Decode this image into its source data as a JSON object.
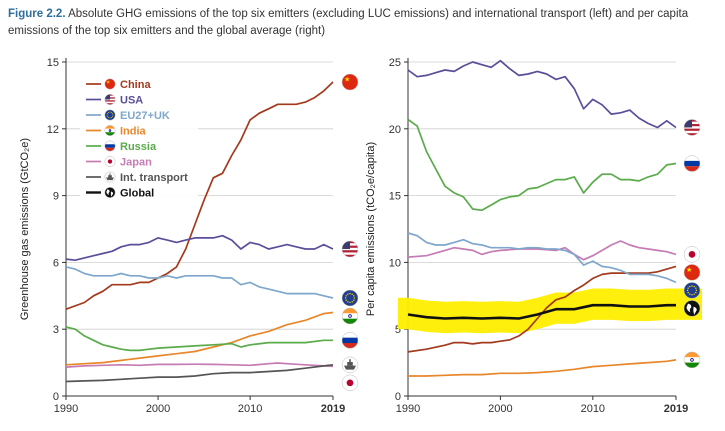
{
  "caption": {
    "figure_label": "Figure 2.2.",
    "text": "Absolute GHG emissions of the top six emitters (excluding LUC emissions) and international transport (left) and per capita emissions of the top six emitters and the global average (right)"
  },
  "colors": {
    "China": "#a33a1c",
    "USA": "#5a4e9a",
    "EU27+UK": "#7fa7cc",
    "India": "#e8872a",
    "Russia": "#5aab4a",
    "Japan": "#c67bb4",
    "Int. transport": "#555555",
    "Global": "#111111",
    "highlight": "#ffee00",
    "grid": "#cfcfcf"
  },
  "chart_data": [
    {
      "type": "line",
      "title": "",
      "xlabel": "",
      "ylabel": "Greenhouse gas emissions (GtCO₂e)",
      "xlim": [
        1990,
        2019
      ],
      "ylim": [
        0,
        15
      ],
      "xticks": [
        "1990",
        "2000",
        "2010",
        "2019"
      ],
      "yticks": [
        "0",
        "3",
        "6",
        "9",
        "12",
        "15"
      ],
      "grid": true,
      "legend": "top-left",
      "legend_entries": [
        "China",
        "USA",
        "EU27+UK",
        "India",
        "Russia",
        "Japan",
        "Int. transport",
        "Global"
      ],
      "legend_icons": [
        "china-flag-icon",
        "usa-flag-icon",
        "eu-flag-icon",
        "india-flag-icon",
        "russia-flag-icon",
        "japan-flag-icon",
        "ship-icon",
        "globe-icon"
      ],
      "end_icons": [
        "china-flag-icon",
        "usa-flag-icon",
        "eu-flag-icon",
        "india-flag-icon",
        "russia-flag-icon",
        "ship-icon",
        "japan-flag-icon"
      ],
      "series": [
        {
          "name": "China",
          "x": [
            1990,
            1992,
            1993,
            1994,
            1995,
            1996,
            1997,
            1998,
            1999,
            2000,
            2001,
            2002,
            2003,
            2004,
            2005,
            2006,
            2007,
            2008,
            2009,
            2010,
            2011,
            2012,
            2013,
            2014,
            2015,
            2016,
            2017,
            2018,
            2019
          ],
          "y": [
            3.9,
            4.2,
            4.5,
            4.7,
            5.0,
            5.0,
            5.0,
            5.1,
            5.1,
            5.3,
            5.5,
            5.8,
            6.6,
            7.7,
            8.8,
            9.8,
            10.0,
            10.8,
            11.5,
            12.4,
            12.7,
            12.9,
            13.1,
            13.1,
            13.1,
            13.2,
            13.4,
            13.7,
            14.1
          ]
        },
        {
          "name": "USA",
          "x": [
            1990,
            1991,
            1992,
            1993,
            1994,
            1995,
            1996,
            1997,
            1998,
            1999,
            2000,
            2001,
            2002,
            2003,
            2004,
            2005,
            2006,
            2007,
            2008,
            2009,
            2010,
            2011,
            2012,
            2013,
            2014,
            2015,
            2016,
            2017,
            2018,
            2019
          ],
          "y": [
            6.15,
            6.1,
            6.2,
            6.3,
            6.4,
            6.5,
            6.7,
            6.8,
            6.8,
            6.9,
            7.1,
            7.0,
            6.9,
            7.0,
            7.1,
            7.1,
            7.1,
            7.2,
            7.0,
            6.6,
            6.9,
            6.8,
            6.6,
            6.7,
            6.8,
            6.7,
            6.6,
            6.6,
            6.8,
            6.6
          ]
        },
        {
          "name": "EU27+UK",
          "x": [
            1990,
            1991,
            1992,
            1993,
            1994,
            1995,
            1996,
            1997,
            1998,
            1999,
            2000,
            2001,
            2002,
            2003,
            2004,
            2005,
            2006,
            2007,
            2008,
            2009,
            2010,
            2011,
            2012,
            2013,
            2014,
            2015,
            2016,
            2017,
            2018,
            2019
          ],
          "y": [
            5.8,
            5.7,
            5.5,
            5.4,
            5.4,
            5.4,
            5.5,
            5.4,
            5.4,
            5.3,
            5.3,
            5.4,
            5.3,
            5.4,
            5.4,
            5.4,
            5.4,
            5.3,
            5.3,
            5.0,
            5.1,
            4.9,
            4.8,
            4.7,
            4.6,
            4.6,
            4.6,
            4.6,
            4.5,
            4.4
          ]
        },
        {
          "name": "India",
          "x": [
            1990,
            1992,
            1994,
            1996,
            1998,
            2000,
            2002,
            2004,
            2006,
            2008,
            2010,
            2012,
            2014,
            2016,
            2018,
            2019
          ],
          "y": [
            1.4,
            1.45,
            1.5,
            1.6,
            1.7,
            1.8,
            1.9,
            2.0,
            2.2,
            2.4,
            2.7,
            2.9,
            3.2,
            3.4,
            3.7,
            3.75
          ]
        },
        {
          "name": "Russia",
          "x": [
            1990,
            1991,
            1992,
            1993,
            1994,
            1995,
            1996,
            1997,
            1998,
            1999,
            2000,
            2002,
            2004,
            2006,
            2008,
            2009,
            2010,
            2012,
            2014,
            2016,
            2018,
            2019
          ],
          "y": [
            3.1,
            3.0,
            2.7,
            2.5,
            2.3,
            2.2,
            2.1,
            2.05,
            2.05,
            2.1,
            2.15,
            2.2,
            2.25,
            2.3,
            2.35,
            2.2,
            2.3,
            2.4,
            2.4,
            2.4,
            2.5,
            2.5
          ]
        },
        {
          "name": "Japan",
          "x": [
            1990,
            1992,
            1994,
            1996,
            1998,
            2000,
            2002,
            2004,
            2006,
            2008,
            2010,
            2012,
            2013,
            2014,
            2016,
            2018,
            2019
          ],
          "y": [
            1.3,
            1.35,
            1.38,
            1.4,
            1.38,
            1.42,
            1.42,
            1.43,
            1.42,
            1.4,
            1.38,
            1.45,
            1.48,
            1.45,
            1.4,
            1.35,
            1.33
          ]
        },
        {
          "name": "Int. transport",
          "x": [
            1990,
            1992,
            1994,
            1996,
            1998,
            2000,
            2002,
            2004,
            2006,
            2008,
            2010,
            2012,
            2014,
            2016,
            2018,
            2019
          ],
          "y": [
            0.65,
            0.68,
            0.7,
            0.75,
            0.8,
            0.85,
            0.85,
            0.9,
            1.0,
            1.05,
            1.05,
            1.1,
            1.15,
            1.25,
            1.35,
            1.4
          ]
        }
      ]
    },
    {
      "type": "line",
      "title": "",
      "xlabel": "",
      "ylabel": "Per capita emissions (tCO₂e/capita)",
      "xlim": [
        1990,
        2019
      ],
      "ylim": [
        0,
        25
      ],
      "xticks": [
        "1990",
        "2000",
        "2010",
        "2019"
      ],
      "yticks": [
        "0",
        "5",
        "10",
        "15",
        "20",
        "25"
      ],
      "grid": true,
      "legend": "none",
      "highlight_series": "Global",
      "end_icons": [
        "usa-flag-icon",
        "russia-flag-icon",
        "japan-flag-icon",
        "china-flag-icon",
        "eu-flag-icon",
        "globe-icon",
        "india-flag-icon"
      ],
      "series": [
        {
          "name": "USA",
          "x": [
            1990,
            1991,
            1992,
            1993,
            1994,
            1995,
            1996,
            1997,
            1998,
            1999,
            2000,
            2001,
            2002,
            2003,
            2004,
            2005,
            2006,
            2007,
            2008,
            2009,
            2010,
            2011,
            2012,
            2013,
            2014,
            2015,
            2016,
            2017,
            2018,
            2019
          ],
          "y": [
            24.4,
            23.9,
            24.0,
            24.2,
            24.4,
            24.3,
            24.7,
            25.0,
            24.8,
            24.6,
            25.1,
            24.5,
            24.0,
            24.1,
            24.3,
            24.1,
            23.7,
            23.9,
            23.0,
            21.5,
            22.2,
            21.8,
            21.1,
            21.2,
            21.4,
            20.8,
            20.4,
            20.1,
            20.6,
            20.1
          ]
        },
        {
          "name": "Russia",
          "x": [
            1990,
            1991,
            1992,
            1993,
            1994,
            1995,
            1996,
            1997,
            1998,
            1999,
            2000,
            2001,
            2002,
            2003,
            2004,
            2005,
            2006,
            2007,
            2008,
            2009,
            2010,
            2011,
            2012,
            2013,
            2014,
            2015,
            2016,
            2017,
            2018,
            2019
          ],
          "y": [
            20.7,
            20.2,
            18.3,
            17.0,
            15.7,
            15.2,
            14.9,
            14.0,
            13.9,
            14.3,
            14.7,
            14.9,
            15.0,
            15.5,
            15.6,
            15.9,
            16.2,
            16.2,
            16.4,
            15.2,
            16.0,
            16.6,
            16.6,
            16.2,
            16.2,
            16.1,
            16.4,
            16.6,
            17.3,
            17.4
          ]
        },
        {
          "name": "Japan",
          "x": [
            1990,
            1992,
            1994,
            1995,
            1996,
            1997,
            1998,
            1999,
            2000,
            2002,
            2004,
            2006,
            2007,
            2008,
            2009,
            2010,
            2011,
            2012,
            2013,
            2014,
            2015,
            2016,
            2017,
            2018,
            2019
          ],
          "y": [
            10.4,
            10.5,
            10.9,
            11.1,
            11.0,
            10.9,
            10.6,
            10.8,
            10.9,
            11.0,
            11.0,
            10.9,
            11.1,
            10.6,
            10.2,
            10.5,
            10.9,
            11.3,
            11.6,
            11.3,
            11.1,
            11.0,
            10.9,
            10.8,
            10.6
          ]
        },
        {
          "name": "China",
          "x": [
            1990,
            1992,
            1994,
            1995,
            1996,
            1997,
            1998,
            1999,
            2000,
            2001,
            2002,
            2003,
            2004,
            2005,
            2006,
            2007,
            2008,
            2009,
            2010,
            2011,
            2012,
            2013,
            2014,
            2015,
            2016,
            2017,
            2018,
            2019
          ],
          "y": [
            3.3,
            3.5,
            3.8,
            4.0,
            4.0,
            3.9,
            4.0,
            4.0,
            4.1,
            4.2,
            4.5,
            5.0,
            5.8,
            6.6,
            7.2,
            7.4,
            7.9,
            8.3,
            8.8,
            9.1,
            9.2,
            9.2,
            9.2,
            9.2,
            9.2,
            9.3,
            9.5,
            9.7
          ]
        },
        {
          "name": "EU27+UK",
          "x": [
            1990,
            1991,
            1992,
            1993,
            1994,
            1995,
            1996,
            1997,
            1998,
            1999,
            2000,
            2001,
            2002,
            2003,
            2004,
            2005,
            2006,
            2007,
            2008,
            2009,
            2010,
            2011,
            2012,
            2013,
            2014,
            2015,
            2016,
            2017,
            2018,
            2019
          ],
          "y": [
            12.2,
            12.0,
            11.5,
            11.3,
            11.3,
            11.5,
            11.7,
            11.4,
            11.3,
            11.1,
            11.1,
            11.1,
            11.0,
            11.1,
            11.1,
            11.0,
            11.0,
            10.9,
            10.6,
            9.8,
            10.1,
            9.7,
            9.6,
            9.4,
            9.1,
            9.1,
            9.1,
            9.0,
            8.8,
            8.5
          ]
        },
        {
          "name": "Global",
          "x": [
            1990,
            1992,
            1994,
            1996,
            1998,
            2000,
            2002,
            2004,
            2006,
            2008,
            2010,
            2012,
            2014,
            2016,
            2018,
            2019
          ],
          "y": [
            6.1,
            5.9,
            5.8,
            5.85,
            5.8,
            5.85,
            5.8,
            6.1,
            6.5,
            6.5,
            6.8,
            6.8,
            6.7,
            6.7,
            6.8,
            6.8
          ]
        },
        {
          "name": "India",
          "x": [
            1990,
            1992,
            1994,
            1996,
            1998,
            2000,
            2002,
            2004,
            2006,
            2008,
            2010,
            2012,
            2014,
            2016,
            2018,
            2019
          ],
          "y": [
            1.5,
            1.5,
            1.55,
            1.6,
            1.6,
            1.7,
            1.7,
            1.75,
            1.85,
            2.0,
            2.2,
            2.3,
            2.4,
            2.5,
            2.6,
            2.7
          ]
        }
      ]
    }
  ]
}
